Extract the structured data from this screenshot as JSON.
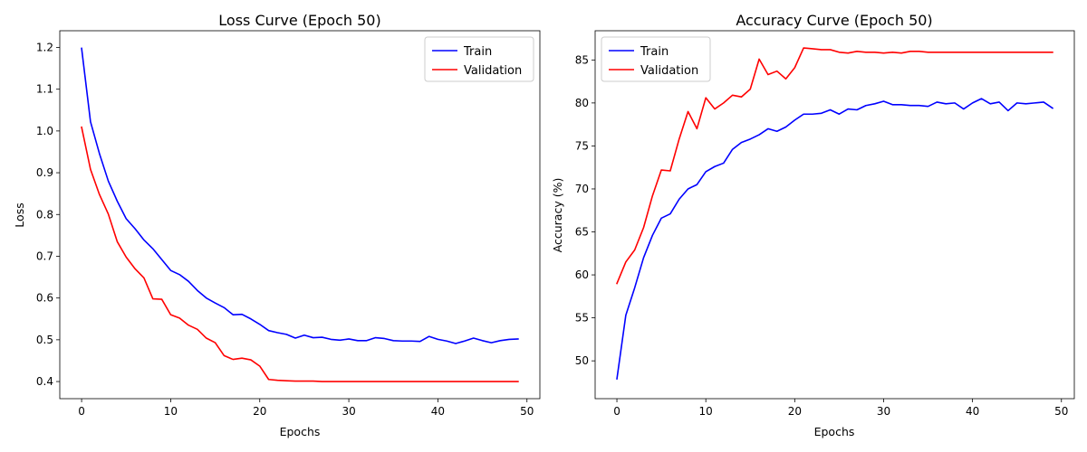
{
  "chart_data": [
    {
      "type": "line",
      "title": "Loss Curve (Epoch 50)",
      "xlabel": "Epochs",
      "ylabel": "Loss",
      "xlim": [
        -2.45,
        51.45
      ],
      "ylim": [
        0.359,
        1.24
      ],
      "xticks": [
        0,
        10,
        20,
        30,
        40,
        50
      ],
      "yticks": [
        0.4,
        0.5,
        0.6,
        0.7,
        0.8,
        0.9,
        1.0,
        1.1,
        1.2
      ],
      "ytick_labels": [
        "0.4",
        "0.5",
        "0.6",
        "0.7",
        "0.8",
        "0.9",
        "1.0",
        "1.1",
        "1.2"
      ],
      "grid": false,
      "legend": "upper right",
      "x": [
        0,
        1,
        2,
        3,
        4,
        5,
        6,
        7,
        8,
        9,
        10,
        11,
        12,
        13,
        14,
        15,
        16,
        17,
        18,
        19,
        20,
        21,
        22,
        23,
        24,
        25,
        26,
        27,
        28,
        29,
        30,
        31,
        32,
        33,
        34,
        35,
        36,
        37,
        38,
        39,
        40,
        41,
        42,
        43,
        44,
        45,
        46,
        47,
        48,
        49
      ],
      "series": [
        {
          "name": "Train",
          "color": "#0000ff",
          "values": [
            1.198,
            1.022,
            0.946,
            0.88,
            0.832,
            0.79,
            0.766,
            0.739,
            0.718,
            0.692,
            0.666,
            0.656,
            0.64,
            0.618,
            0.6,
            0.588,
            0.577,
            0.56,
            0.561,
            0.55,
            0.537,
            0.522,
            0.517,
            0.513,
            0.504,
            0.511,
            0.505,
            0.506,
            0.501,
            0.499,
            0.502,
            0.498,
            0.498,
            0.505,
            0.503,
            0.498,
            0.497,
            0.497,
            0.496,
            0.508,
            0.501,
            0.497,
            0.491,
            0.497,
            0.504,
            0.498,
            0.493,
            0.498,
            0.501,
            0.502
          ]
        },
        {
          "name": "Validation",
          "color": "#ff0000",
          "values": [
            1.009,
            0.908,
            0.848,
            0.801,
            0.735,
            0.698,
            0.67,
            0.648,
            0.598,
            0.597,
            0.56,
            0.552,
            0.535,
            0.525,
            0.504,
            0.493,
            0.462,
            0.453,
            0.456,
            0.452,
            0.437,
            0.405,
            0.403,
            0.402,
            0.401,
            0.401,
            0.401,
            0.4,
            0.4,
            0.4,
            0.4,
            0.4,
            0.4,
            0.4,
            0.4,
            0.4,
            0.4,
            0.4,
            0.4,
            0.4,
            0.4,
            0.4,
            0.4,
            0.4,
            0.4,
            0.4,
            0.4,
            0.4,
            0.4,
            0.4
          ]
        }
      ]
    },
    {
      "type": "line",
      "title": "Accuracy Curve (Epoch 50)",
      "xlabel": "Epochs",
      "ylabel": "Accuracy (%)",
      "xlim": [
        -2.45,
        51.45
      ],
      "ylim": [
        45.6,
        88.4
      ],
      "xticks": [
        0,
        10,
        20,
        30,
        40,
        50
      ],
      "yticks": [
        50,
        55,
        60,
        65,
        70,
        75,
        80,
        85
      ],
      "ytick_labels": [
        "50",
        "55",
        "60",
        "65",
        "70",
        "75",
        "80",
        "85"
      ],
      "grid": false,
      "legend": "upper left",
      "x": [
        0,
        1,
        2,
        3,
        4,
        5,
        6,
        7,
        8,
        9,
        10,
        11,
        12,
        13,
        14,
        15,
        16,
        17,
        18,
        19,
        20,
        21,
        22,
        23,
        24,
        25,
        26,
        27,
        28,
        29,
        30,
        31,
        32,
        33,
        34,
        35,
        36,
        37,
        38,
        39,
        40,
        41,
        42,
        43,
        44,
        45,
        46,
        47,
        48,
        49
      ],
      "series": [
        {
          "name": "Train",
          "color": "#0000ff",
          "values": [
            47.9,
            55.3,
            58.5,
            62.0,
            64.6,
            66.6,
            67.1,
            68.8,
            70.0,
            70.5,
            72.0,
            72.6,
            73.0,
            74.6,
            75.4,
            75.8,
            76.3,
            77.0,
            76.7,
            77.2,
            78.0,
            78.7,
            78.7,
            78.8,
            79.2,
            78.7,
            79.3,
            79.2,
            79.7,
            79.9,
            80.2,
            79.8,
            79.8,
            79.7,
            79.7,
            79.6,
            80.1,
            79.9,
            80.0,
            79.3,
            80.0,
            80.5,
            79.9,
            80.1,
            79.1,
            80.0,
            79.9,
            80.0,
            80.1,
            79.4
          ]
        },
        {
          "name": "Validation",
          "color": "#ff0000",
          "values": [
            59.0,
            61.5,
            62.9,
            65.5,
            69.2,
            72.2,
            72.1,
            75.8,
            79.0,
            77.0,
            80.6,
            79.3,
            80.0,
            80.9,
            80.7,
            81.6,
            85.1,
            83.3,
            83.7,
            82.8,
            84.1,
            86.4,
            86.3,
            86.2,
            86.2,
            85.9,
            85.8,
            86.0,
            85.9,
            85.9,
            85.8,
            85.9,
            85.8,
            86.0,
            86.0,
            85.9,
            85.9,
            85.9,
            85.9,
            85.9,
            85.9,
            85.9,
            85.9,
            85.9,
            85.9,
            85.9,
            85.9,
            85.9,
            85.9,
            85.9
          ]
        }
      ]
    }
  ]
}
